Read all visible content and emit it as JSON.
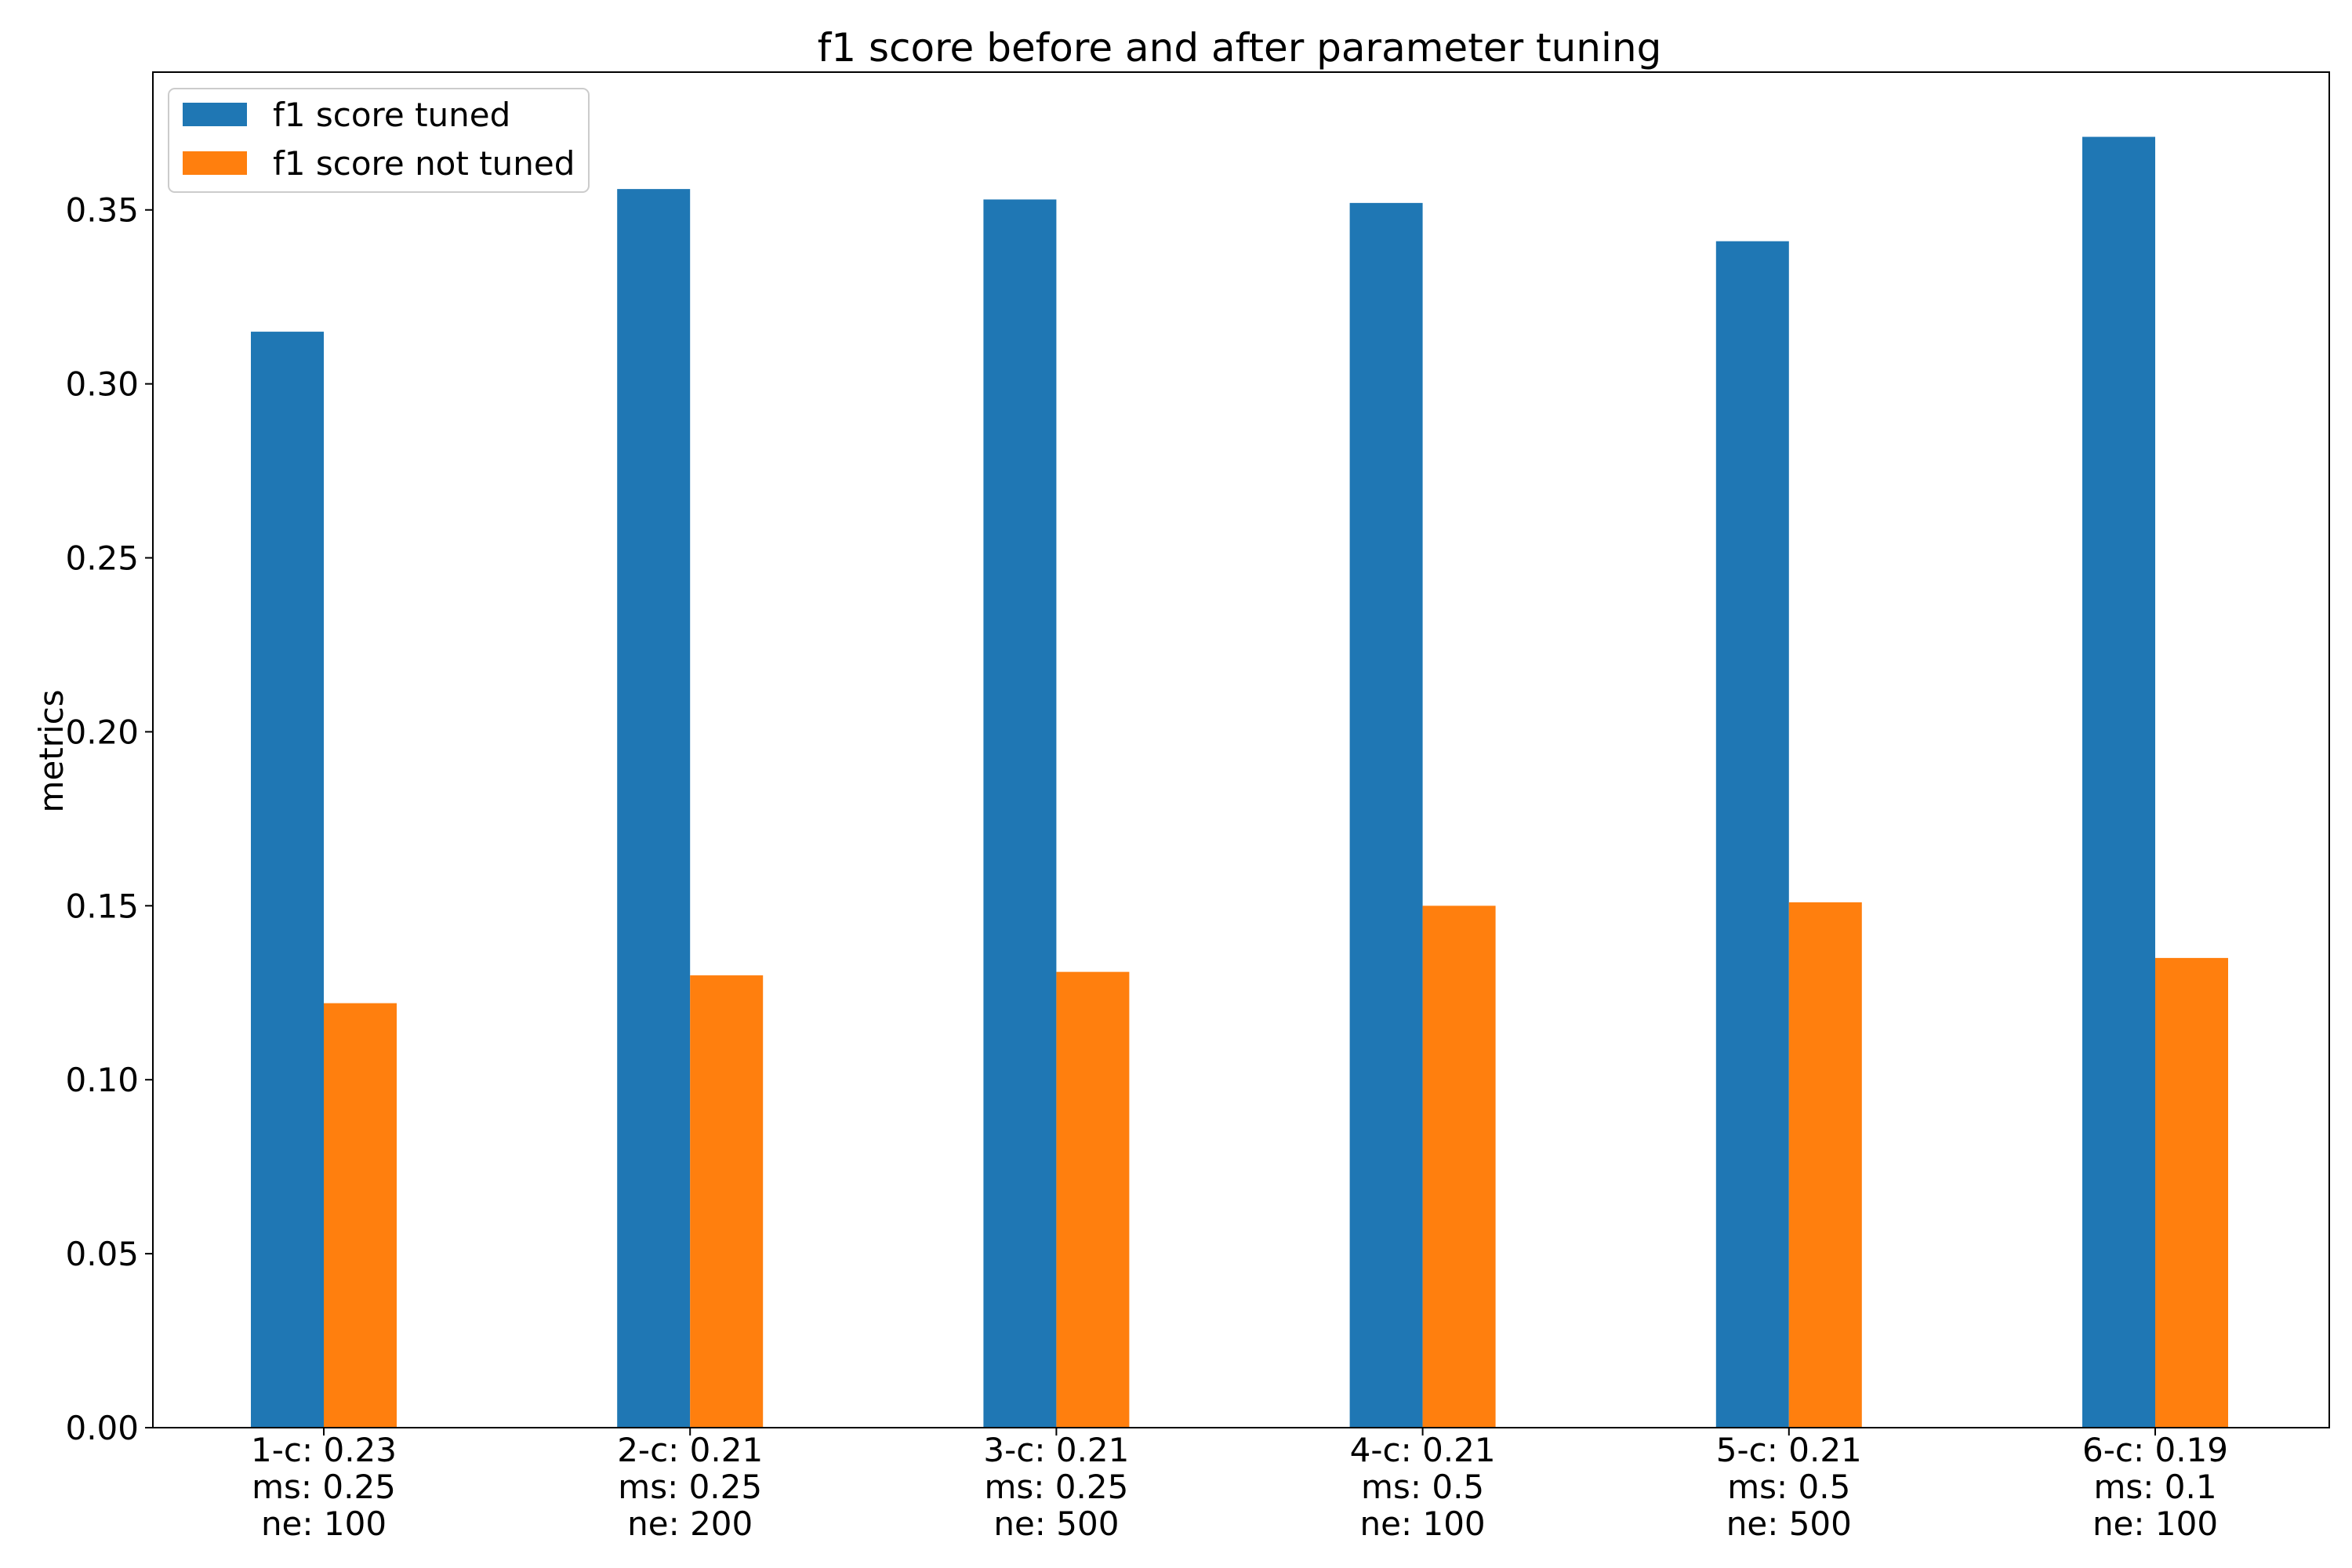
{
  "chart_data": {
    "type": "bar",
    "title": "f1 score before and after parameter tuning",
    "xlabel": "",
    "ylabel": "metrics",
    "ylim": [
      0,
      0.3896
    ],
    "yticks": [
      0.0,
      0.05,
      0.1,
      0.15,
      0.2,
      0.25,
      0.3,
      0.35
    ],
    "ytick_labels": [
      "0.00",
      "0.05",
      "0.10",
      "0.15",
      "0.20",
      "0.25",
      "0.30",
      "0.35"
    ],
    "grid": false,
    "legend_position": "top-left",
    "categories": [
      [
        "1-c: 0.23",
        "ms: 0.25",
        "ne: 100"
      ],
      [
        "2-c: 0.21",
        "ms: 0.25",
        "ne: 200"
      ],
      [
        "3-c: 0.21",
        "ms: 0.25",
        "ne: 500"
      ],
      [
        "4-c: 0.21",
        "ms: 0.5",
        "ne: 100"
      ],
      [
        "5-c: 0.21",
        "ms: 0.5",
        "ne: 500"
      ],
      [
        "6-c: 0.19",
        "ms: 0.1",
        "ne: 100"
      ]
    ],
    "series": [
      {
        "name": "f1 score tuned",
        "color": "#1f77b4",
        "values": [
          0.315,
          0.356,
          0.353,
          0.352,
          0.341,
          0.371
        ]
      },
      {
        "name": "f1 score not tuned",
        "color": "#ff7f0e",
        "values": [
          0.122,
          0.13,
          0.131,
          0.15,
          0.151,
          0.135
        ]
      }
    ]
  }
}
